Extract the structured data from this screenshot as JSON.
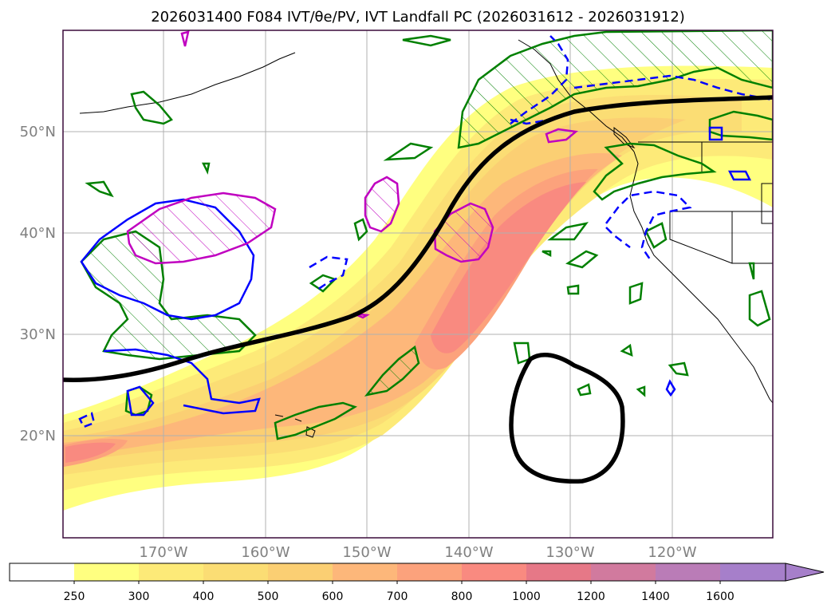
{
  "title": "2026031400 F084 IVT/θe/PV, IVT Landfall PC (2026031612 - 2026031912)",
  "map": {
    "lat_labels": [
      "50°N",
      "40°N",
      "30°N",
      "20°N"
    ],
    "lon_labels": [
      "170°W",
      "160°W",
      "150°W",
      "140°W",
      "130°W",
      "120°W"
    ],
    "colors": {
      "frame": "#3a0a3a",
      "pc_line": "#000000",
      "green_contour": "#008000",
      "blue_contour": "#0000ff",
      "magenta_contour": "#c000c0",
      "coastline": "#000000"
    }
  },
  "colorbar": {
    "levels": [
      "250",
      "300",
      "400",
      "500",
      "600",
      "700",
      "800",
      "1000",
      "1200",
      "1400",
      "1600"
    ],
    "colors": [
      "#ffffff",
      "#ffff80",
      "#fdea78",
      "#fbdd74",
      "#fbcf73",
      "#fdb77a",
      "#fca27c",
      "#f98a80",
      "#e67887",
      "#d17a9e",
      "#ba7cb7",
      "#a67fca"
    ]
  }
}
